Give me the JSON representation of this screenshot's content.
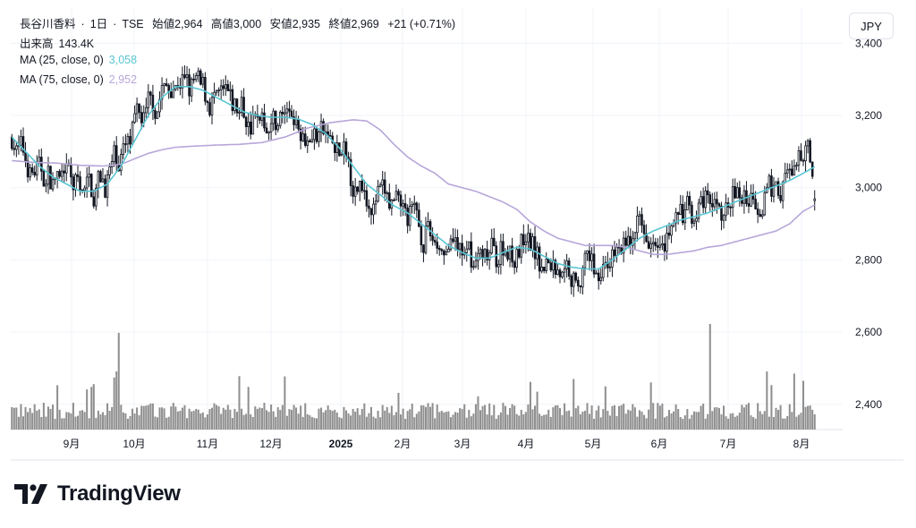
{
  "header": {
    "symbol": "長谷川香料",
    "interval": "1日",
    "exchange": "TSE",
    "open_label": "始値",
    "open": "2,964",
    "high_label": "高値",
    "high": "3,000",
    "low_label": "安値",
    "low": "2,935",
    "close_label": "終値",
    "close": "2,969",
    "change": "+21 (+0.71%)",
    "volume_label": "出来高",
    "volume": "143.4K",
    "ma25_label": "MA (25, close, 0)",
    "ma25_value": "3,058",
    "ma75_label": "MA (75, close, 0)",
    "ma75_value": "2,952"
  },
  "currency": "JPY",
  "brand": {
    "name": "TradingView",
    "logo_icon": "tradingview-logo-icon"
  },
  "colors": {
    "ma25": "#59c6d3",
    "ma75": "#b7a6d9",
    "candle": "#131722",
    "volume": "#8f8f8f",
    "grid": "#f0f3fa"
  },
  "chart_data": {
    "type": "candlestick",
    "x_ticks": [
      "9月",
      "10月",
      "11月",
      "12月",
      "2025",
      "2月",
      "3月",
      "4月",
      "5月",
      "6月",
      "7月",
      "8月"
    ],
    "y_ticks": [
      2400,
      2600,
      2800,
      3000,
      3200,
      3400
    ],
    "ylim": [
      2330,
      3500
    ],
    "grid": true,
    "series": [
      {
        "name": "MA (25, close, 0)",
        "points": [
          [
            0,
            3140
          ],
          [
            6,
            3100
          ],
          [
            12,
            3060
          ],
          [
            18,
            3030
          ],
          [
            24,
            3010
          ],
          [
            30,
            2990
          ],
          [
            36,
            2990
          ],
          [
            42,
            3010
          ],
          [
            48,
            3060
          ],
          [
            54,
            3130
          ],
          [
            60,
            3200
          ],
          [
            66,
            3250
          ],
          [
            72,
            3280
          ],
          [
            78,
            3280
          ],
          [
            84,
            3270
          ],
          [
            90,
            3250
          ],
          [
            96,
            3230
          ],
          [
            102,
            3210
          ],
          [
            108,
            3200
          ],
          [
            114,
            3195
          ],
          [
            120,
            3195
          ],
          [
            126,
            3190
          ],
          [
            132,
            3175
          ],
          [
            138,
            3150
          ],
          [
            144,
            3110
          ],
          [
            150,
            3060
          ],
          [
            156,
            3010
          ],
          [
            162,
            2980
          ],
          [
            168,
            2950
          ],
          [
            174,
            2930
          ],
          [
            180,
            2900
          ],
          [
            186,
            2870
          ],
          [
            192,
            2840
          ],
          [
            198,
            2820
          ],
          [
            204,
            2805
          ],
          [
            210,
            2805
          ],
          [
            216,
            2820
          ],
          [
            222,
            2835
          ],
          [
            228,
            2830
          ],
          [
            234,
            2810
          ],
          [
            240,
            2790
          ],
          [
            246,
            2780
          ],
          [
            252,
            2775
          ],
          [
            258,
            2775
          ],
          [
            264,
            2800
          ],
          [
            270,
            2830
          ],
          [
            276,
            2860
          ],
          [
            282,
            2880
          ],
          [
            288,
            2895
          ],
          [
            294,
            2910
          ],
          [
            300,
            2920
          ],
          [
            306,
            2930
          ],
          [
            312,
            2945
          ],
          [
            318,
            2960
          ],
          [
            324,
            2975
          ],
          [
            330,
            2990
          ],
          [
            336,
            3005
          ],
          [
            342,
            3020
          ],
          [
            348,
            3040
          ],
          [
            353,
            3058
          ]
        ]
      },
      {
        "name": "MA (75, close, 0)",
        "points": [
          [
            0,
            3075
          ],
          [
            10,
            3070
          ],
          [
            20,
            3068
          ],
          [
            30,
            3062
          ],
          [
            40,
            3060
          ],
          [
            48,
            3065
          ],
          [
            54,
            3080
          ],
          [
            60,
            3095
          ],
          [
            66,
            3105
          ],
          [
            72,
            3112
          ],
          [
            80,
            3115
          ],
          [
            90,
            3118
          ],
          [
            100,
            3120
          ],
          [
            110,
            3125
          ],
          [
            120,
            3140
          ],
          [
            130,
            3165
          ],
          [
            140,
            3180
          ],
          [
            150,
            3188
          ],
          [
            156,
            3185
          ],
          [
            162,
            3160
          ],
          [
            168,
            3120
          ],
          [
            174,
            3085
          ],
          [
            180,
            3060
          ],
          [
            186,
            3040
          ],
          [
            192,
            3010
          ],
          [
            198,
            3000
          ],
          [
            204,
            2990
          ],
          [
            210,
            2975
          ],
          [
            216,
            2960
          ],
          [
            222,
            2940
          ],
          [
            228,
            2905
          ],
          [
            234,
            2880
          ],
          [
            240,
            2860
          ],
          [
            246,
            2850
          ],
          [
            252,
            2840
          ],
          [
            258,
            2840
          ],
          [
            264,
            2840
          ],
          [
            270,
            2835
          ],
          [
            276,
            2825
          ],
          [
            282,
            2815
          ],
          [
            288,
            2815
          ],
          [
            294,
            2820
          ],
          [
            300,
            2825
          ],
          [
            306,
            2835
          ],
          [
            312,
            2840
          ],
          [
            318,
            2850
          ],
          [
            324,
            2860
          ],
          [
            330,
            2870
          ],
          [
            336,
            2880
          ],
          [
            342,
            2900
          ],
          [
            348,
            2935
          ],
          [
            353,
            2952
          ]
        ]
      }
    ],
    "candles_note": "daily OHLC, approx. 354 trading days",
    "last": {
      "open": 2964,
      "high": 3000,
      "low": 2935,
      "close": 2969,
      "volume": 143400
    }
  }
}
